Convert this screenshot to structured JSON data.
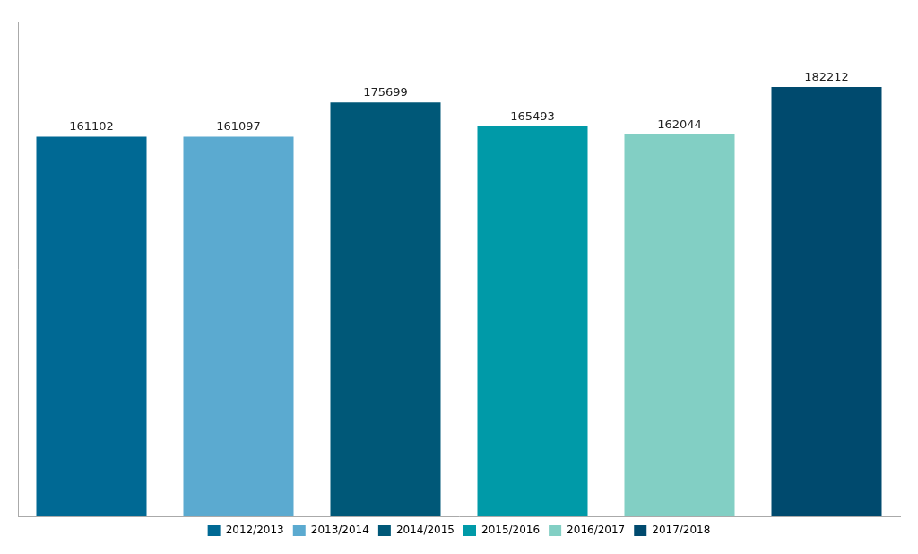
{
  "chart_data": {
    "type": "bar",
    "categories": [
      "2012/2013",
      "2013/2014",
      "2014/2015",
      "2015/2016",
      "2016/2017",
      "2017/2018"
    ],
    "values": [
      161102,
      161097,
      175699,
      165493,
      162044,
      182212
    ],
    "colors": [
      "#006994",
      "#5BAAD0",
      "#005878",
      "#009AA8",
      "#82CFC4",
      "#004A6E"
    ],
    "ylim": [
      0,
      210000
    ],
    "data_labels": true,
    "tick_labels": false,
    "legend": "bottom",
    "grid": false
  }
}
